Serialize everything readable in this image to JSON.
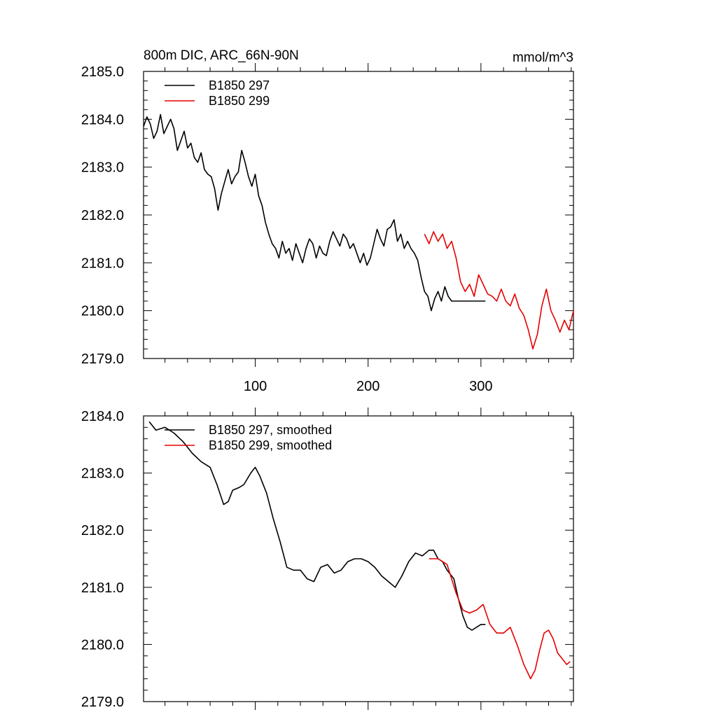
{
  "chart_data": [
    {
      "type": "line",
      "title": "800m DIC, ARC_66N-90N",
      "units": "mmol/m^3",
      "xlabel": "",
      "ylabel": "",
      "xlim": [
        1,
        382
      ],
      "ylim": [
        2179.0,
        2185.0
      ],
      "xticks": [
        100,
        200,
        300
      ],
      "xtick_labels": [
        "100",
        "200",
        "300"
      ],
      "yticks": [
        2179.0,
        2180.0,
        2181.0,
        2182.0,
        2183.0,
        2184.0,
        2185.0
      ],
      "ytick_labels": [
        "2179.0",
        "2180.0",
        "2181.0",
        "2182.0",
        "2183.0",
        "2184.0",
        "2185.0"
      ],
      "legend_position": "top-left",
      "series": [
        {
          "name": "B1850 297",
          "color": "#000000",
          "x": [
            1,
            4,
            7,
            10,
            13,
            16,
            19,
            22,
            25,
            28,
            31,
            34,
            37,
            40,
            43,
            46,
            49,
            52,
            55,
            58,
            61,
            64,
            67,
            70,
            73,
            76,
            79,
            82,
            85,
            88,
            91,
            94,
            97,
            100,
            103,
            106,
            109,
            112,
            115,
            118,
            121,
            124,
            127,
            130,
            133,
            136,
            139,
            142,
            145,
            148,
            151,
            154,
            157,
            160,
            163,
            166,
            169,
            172,
            175,
            178,
            181,
            184,
            187,
            190,
            193,
            196,
            199,
            202,
            205,
            208,
            211,
            214,
            217,
            220,
            223,
            226,
            229,
            232,
            235,
            238,
            241,
            244,
            247,
            250,
            253,
            256,
            259,
            262,
            265,
            268,
            271,
            274,
            277,
            280,
            283,
            286,
            289,
            292,
            295,
            298,
            301,
            304
          ],
          "y": [
            2183.85,
            2184.05,
            2183.9,
            2183.6,
            2183.75,
            2184.1,
            2183.7,
            2183.85,
            2184.0,
            2183.8,
            2183.35,
            2183.55,
            2183.75,
            2183.4,
            2183.5,
            2183.2,
            2183.1,
            2183.3,
            2182.95,
            2182.85,
            2182.8,
            2182.55,
            2182.1,
            2182.45,
            2182.7,
            2182.95,
            2182.65,
            2182.8,
            2182.9,
            2183.35,
            2183.1,
            2182.8,
            2182.6,
            2182.85,
            2182.4,
            2182.2,
            2181.85,
            2181.6,
            2181.4,
            2181.3,
            2181.1,
            2181.45,
            2181.2,
            2181.3,
            2181.05,
            2181.4,
            2181.2,
            2181.0,
            2181.3,
            2181.5,
            2181.4,
            2181.1,
            2181.35,
            2181.2,
            2181.15,
            2181.45,
            2181.65,
            2181.5,
            2181.35,
            2181.6,
            2181.5,
            2181.3,
            2181.4,
            2181.2,
            2181.0,
            2181.2,
            2180.95,
            2181.1,
            2181.4,
            2181.7,
            2181.5,
            2181.35,
            2181.7,
            2181.75,
            2181.9,
            2181.45,
            2181.6,
            2181.3,
            2181.45,
            2181.3,
            2181.2,
            2181.05,
            2180.7,
            2180.4,
            2180.3,
            2180.0,
            2180.25,
            2180.4,
            2180.2,
            2180.5,
            2180.3,
            2180.2,
            2180.2,
            2180.2,
            2180.2,
            2180.2,
            2180.2,
            2180.2,
            2180.2,
            2180.2,
            2180.2,
            2180.2
          ]
        },
        {
          "name": "B1850 299",
          "color": "#e60000",
          "x": [
            250,
            254,
            258,
            262,
            266,
            270,
            274,
            278,
            282,
            286,
            290,
            294,
            298,
            302,
            306,
            310,
            314,
            318,
            322,
            326,
            330,
            334,
            338,
            342,
            346,
            350,
            354,
            358,
            362,
            366,
            370,
            374,
            378,
            382
          ],
          "y": [
            2181.6,
            2181.4,
            2181.65,
            2181.45,
            2181.6,
            2181.3,
            2181.45,
            2181.1,
            2180.6,
            2180.4,
            2180.55,
            2180.3,
            2180.75,
            2180.55,
            2180.35,
            2180.3,
            2180.2,
            2180.45,
            2180.2,
            2180.1,
            2180.35,
            2180.05,
            2179.9,
            2179.6,
            2179.2,
            2179.5,
            2180.1,
            2180.45,
            2180.0,
            2179.8,
            2179.55,
            2179.8,
            2179.6,
            2180.0
          ]
        }
      ]
    },
    {
      "type": "line",
      "title": "",
      "xlabel": "",
      "ylabel": "",
      "xlim": [
        1,
        382
      ],
      "ylim": [
        2179.0,
        2184.0
      ],
      "xticks": [
        100,
        200,
        300
      ],
      "xtick_labels": [],
      "yticks": [
        2179.0,
        2180.0,
        2181.0,
        2182.0,
        2183.0,
        2184.0
      ],
      "ytick_labels": [
        "2179.0",
        "2180.0",
        "2181.0",
        "2182.0",
        "2183.0",
        "2184.0"
      ],
      "legend_position": "top-left",
      "series": [
        {
          "name": "B1850 297, smoothed",
          "color": "#000000",
          "x": [
            6,
            12,
            20,
            28,
            36,
            44,
            52,
            60,
            66,
            72,
            76,
            80,
            86,
            90,
            96,
            100,
            104,
            110,
            116,
            122,
            128,
            134,
            140,
            146,
            152,
            158,
            164,
            170,
            176,
            182,
            188,
            194,
            200,
            206,
            212,
            218,
            224,
            230,
            236,
            242,
            248,
            254,
            258,
            262,
            266,
            270,
            276,
            280,
            284,
            288,
            292,
            296,
            300,
            304
          ],
          "y": [
            2183.9,
            2183.75,
            2183.8,
            2183.7,
            2183.55,
            2183.35,
            2183.2,
            2183.1,
            2182.8,
            2182.45,
            2182.5,
            2182.7,
            2182.75,
            2182.8,
            2183.0,
            2183.1,
            2182.95,
            2182.65,
            2182.2,
            2181.8,
            2181.35,
            2181.3,
            2181.3,
            2181.15,
            2181.1,
            2181.35,
            2181.4,
            2181.25,
            2181.3,
            2181.45,
            2181.5,
            2181.5,
            2181.45,
            2181.35,
            2181.2,
            2181.1,
            2181.0,
            2181.2,
            2181.45,
            2181.6,
            2181.55,
            2181.65,
            2181.65,
            2181.5,
            2181.45,
            2181.3,
            2181.15,
            2180.8,
            2180.5,
            2180.3,
            2180.25,
            2180.3,
            2180.35,
            2180.35
          ]
        },
        {
          "name": "B1850 299, smoothed",
          "color": "#e60000",
          "x": [
            254,
            262,
            270,
            278,
            284,
            290,
            296,
            302,
            308,
            314,
            320,
            326,
            332,
            338,
            344,
            348,
            352,
            356,
            360,
            364,
            368,
            372,
            376,
            379
          ],
          "y": [
            2181.5,
            2181.5,
            2181.4,
            2180.9,
            2180.6,
            2180.55,
            2180.6,
            2180.7,
            2180.35,
            2180.2,
            2180.2,
            2180.3,
            2180.0,
            2179.65,
            2179.4,
            2179.55,
            2179.9,
            2180.2,
            2180.25,
            2180.1,
            2179.85,
            2179.75,
            2179.65,
            2179.7
          ]
        }
      ]
    }
  ]
}
